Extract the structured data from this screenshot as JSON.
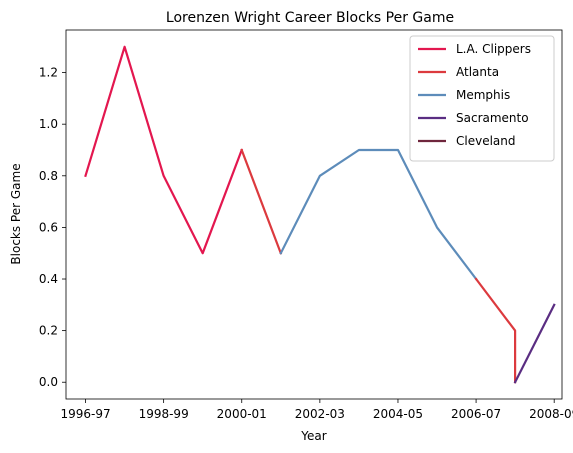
{
  "chart_data": {
    "type": "line",
    "title": "Lorenzen Wright Career Blocks Per Game",
    "xlabel": "Year",
    "ylabel": "Blocks Per Game",
    "x_tick_labels": [
      "1996-97",
      "1998-99",
      "2000-01",
      "2002-03",
      "2004-05",
      "2006-07",
      "2008-09"
    ],
    "y_tick_labels": [
      "0.0",
      "0.2",
      "0.4",
      "0.6",
      "0.8",
      "1.0",
      "1.2"
    ],
    "xlim": [
      1996.5,
      2009.2
    ],
    "ylim": [
      -0.065,
      1.365
    ],
    "grid": false,
    "legend_position": "top-right",
    "series": [
      {
        "name": "L.A. Clippers",
        "color": "#e3174f",
        "points": [
          [
            1997,
            0.8
          ],
          [
            1998,
            1.3
          ],
          [
            1999,
            0.8
          ],
          [
            2000,
            0.5
          ],
          [
            2001,
            0.9
          ]
        ]
      },
      {
        "name": "Atlanta",
        "color": "#dc3a3e",
        "points": [
          [
            2001,
            0.9
          ],
          [
            2002,
            0.5
          ]
        ]
      },
      {
        "name": "Memphis",
        "color": "#5d8cba",
        "points": [
          [
            2002,
            0.5
          ],
          [
            2003,
            0.8
          ],
          [
            2004,
            0.9
          ],
          [
            2005,
            0.9
          ],
          [
            2006,
            0.6
          ],
          [
            2007,
            0.4
          ]
        ]
      },
      {
        "name": "Atlanta",
        "color": "#dc3a3e",
        "legend": false,
        "points": [
          [
            2007,
            0.4
          ],
          [
            2008,
            0.2
          ],
          [
            2008,
            0.0
          ]
        ]
      },
      {
        "name": "Sacramento",
        "color": "#5a2d82",
        "points": [
          [
            2008,
            0.0
          ],
          [
            2009,
            0.3
          ]
        ]
      },
      {
        "name": "Cleveland",
        "color": "#6f263d",
        "points": []
      }
    ]
  }
}
